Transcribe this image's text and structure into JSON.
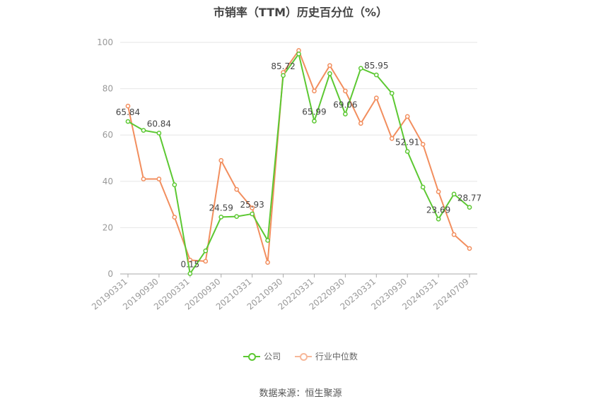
{
  "chart_data": {
    "type": "line",
    "title": "市销率（TTM）历史百分位（%）",
    "x": [
      "20190331",
      "20190630",
      "20190930",
      "20191231",
      "20200331",
      "20200630",
      "20200930",
      "20201231",
      "20210331",
      "20210630",
      "20210930",
      "20211231",
      "20220331",
      "20220630",
      "20220930",
      "20221231",
      "20230331",
      "20230630",
      "20230930",
      "20231231",
      "20240331",
      "20240630",
      "20240709"
    ],
    "x_tick_labels": [
      "20190331",
      "20190930",
      "20200331",
      "20200930",
      "20210331",
      "20210930",
      "20220331",
      "20220930",
      "20230331",
      "20230930",
      "20240331",
      "20240709"
    ],
    "ylim": [
      0,
      100
    ],
    "y_ticks": [
      0,
      20,
      40,
      60,
      80,
      100
    ],
    "grid": true,
    "legend_position": "bottom",
    "series": [
      {
        "name": "公司",
        "color": "#5cc832",
        "values": [
          65.84,
          62,
          60.84,
          38.5,
          0.15,
          10,
          24.59,
          24.8,
          25.93,
          14.5,
          85.72,
          95,
          65.99,
          86.5,
          69.06,
          88.8,
          85.95,
          78,
          52.91,
          37.5,
          23.69,
          34.5,
          28.77
        ]
      },
      {
        "name": "行业中位数",
        "color": "#f28e5e",
        "values": [
          72.5,
          41,
          41,
          24.5,
          6,
          5.5,
          49,
          36.5,
          28.5,
          5,
          87,
          96.5,
          79,
          90,
          79,
          65,
          76,
          58.5,
          68,
          56,
          35.5,
          17,
          11
        ]
      }
    ],
    "data_labels": [
      {
        "series": 0,
        "index": 0,
        "text": "65.84"
      },
      {
        "series": 0,
        "index": 2,
        "text": "60.84"
      },
      {
        "series": 0,
        "index": 4,
        "text": "0.15"
      },
      {
        "series": 0,
        "index": 6,
        "text": "24.59"
      },
      {
        "series": 0,
        "index": 8,
        "text": "25.93"
      },
      {
        "series": 0,
        "index": 10,
        "text": "85.72"
      },
      {
        "series": 0,
        "index": 12,
        "text": "65.99"
      },
      {
        "series": 0,
        "index": 14,
        "text": "69.06"
      },
      {
        "series": 0,
        "index": 16,
        "text": "85.95"
      },
      {
        "series": 0,
        "index": 18,
        "text": "52.91"
      },
      {
        "series": 0,
        "index": 20,
        "text": "23.69"
      },
      {
        "series": 0,
        "index": 22,
        "text": "28.77"
      }
    ]
  },
  "legend": [
    {
      "label": "公司",
      "color": "#5cc832"
    },
    {
      "label": "行业中位数",
      "color": "#f28e5e"
    }
  ],
  "source": "数据来源：恒生聚源"
}
